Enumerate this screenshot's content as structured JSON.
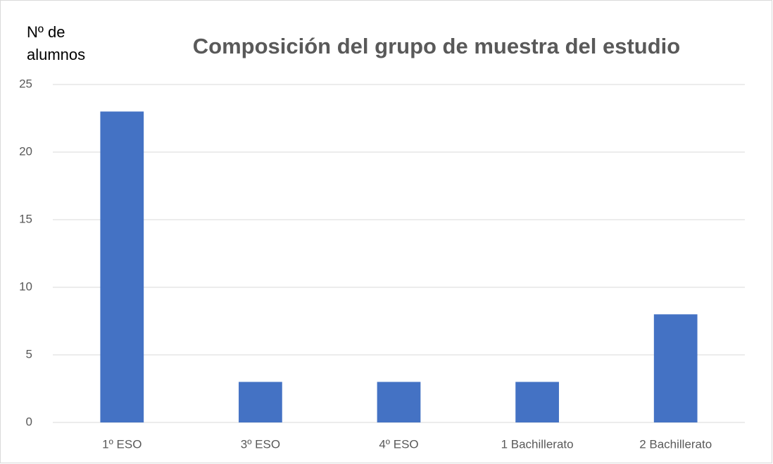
{
  "chart_data": {
    "type": "bar",
    "title": "Composición del grupo de muestra del estudio",
    "y_label": "Nº de alumnos",
    "categories": [
      "1º ESO",
      "3º ESO",
      "4º ESO",
      "1 Bachillerato",
      "2 Bachillerato"
    ],
    "values": [
      23,
      3,
      3,
      3,
      8
    ],
    "color": "#4472c4",
    "ylim": [
      0,
      25
    ],
    "yticks": [
      0,
      5,
      10,
      15,
      20,
      25
    ],
    "grid": true
  }
}
